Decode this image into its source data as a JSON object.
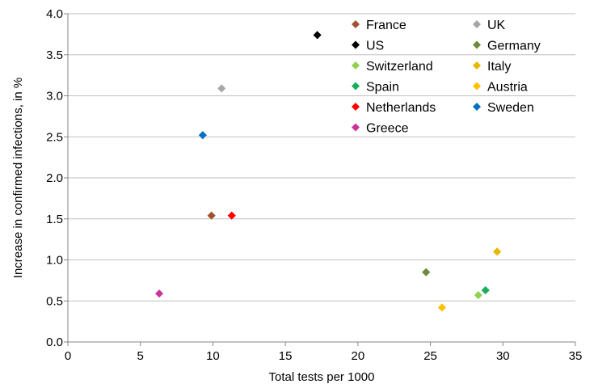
{
  "chart_data": {
    "type": "scatter",
    "xlabel": "Total tests per 1000",
    "ylabel": "Increase in confirmed infections, in %",
    "xlim": [
      0,
      35
    ],
    "ylim": [
      0.0,
      4.0
    ],
    "x_ticks": [
      "0",
      "5",
      "10",
      "15",
      "20",
      "25",
      "30",
      "35"
    ],
    "y_ticks": [
      "0.0",
      "0.5",
      "1.0",
      "1.5",
      "2.0",
      "2.5",
      "3.0",
      "3.5",
      "4.0"
    ],
    "grid": "horizontal",
    "legend_position": "top-right",
    "series": [
      {
        "name": "France",
        "color": "#A0522D",
        "x": 9.9,
        "y": 1.54
      },
      {
        "name": "UK",
        "color": "#A6A6A6",
        "x": 10.6,
        "y": 3.09
      },
      {
        "name": "US",
        "color": "#000000",
        "x": 17.2,
        "y": 3.74
      },
      {
        "name": "Germany",
        "color": "#6E8B3D",
        "x": 24.7,
        "y": 0.85
      },
      {
        "name": "Switzerland",
        "color": "#92D050",
        "x": 28.3,
        "y": 0.57
      },
      {
        "name": "Italy",
        "color": "#E6B800",
        "x": 29.6,
        "y": 1.1
      },
      {
        "name": "Spain",
        "color": "#1AAE5A",
        "x": 28.8,
        "y": 0.63
      },
      {
        "name": "Austria",
        "color": "#FFC000",
        "x": 25.8,
        "y": 0.42
      },
      {
        "name": "Netherlands",
        "color": "#FF0000",
        "x": 11.3,
        "y": 1.54
      },
      {
        "name": "Sweden",
        "color": "#0070C0",
        "x": 9.3,
        "y": 2.52
      },
      {
        "name": "Greece",
        "color": "#CC3399",
        "x": 6.3,
        "y": 0.59
      }
    ]
  }
}
